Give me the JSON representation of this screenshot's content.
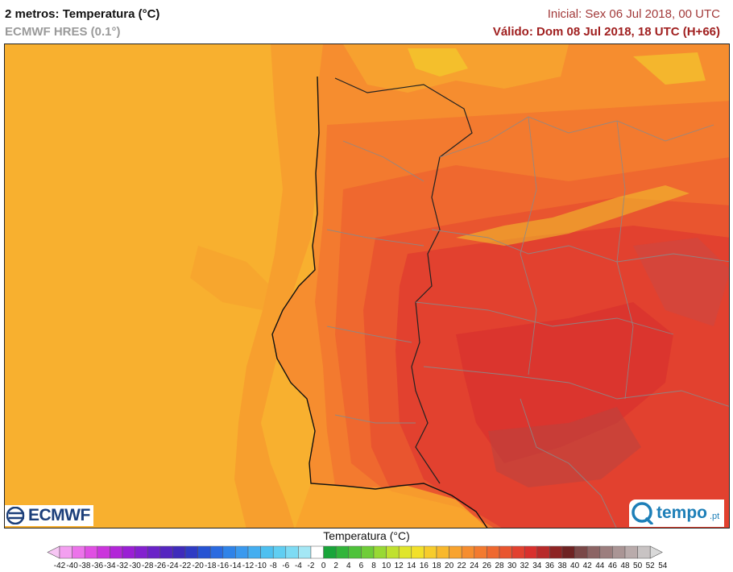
{
  "header": {
    "title": "2 metros: Temperatura (°C)",
    "model": "ECMWF HRES (0.1°)",
    "initial": "Inicial: Sex 06 Jul 2018, 00 UTC",
    "valid": "Válido: Dom 08 Jul 2018, 18 UTC (H+66)"
  },
  "logos": {
    "left": "ECMWF",
    "right_main": "tempo",
    "right_suffix": ".pt"
  },
  "colorbar": {
    "title": "Temperatura (°C)",
    "ticks": [
      "-42",
      "-40",
      "-38",
      "-36",
      "-34",
      "-32",
      "-30",
      "-28",
      "-26",
      "-24",
      "-22",
      "-20",
      "-18",
      "-16",
      "-14",
      "-12",
      "-10",
      "-8",
      "-6",
      "-4",
      "-2",
      "0",
      "2",
      "4",
      "6",
      "8",
      "10",
      "12",
      "14",
      "16",
      "18",
      "20",
      "22",
      "24",
      "26",
      "28",
      "30",
      "32",
      "34",
      "36",
      "38",
      "40",
      "42",
      "44",
      "46",
      "48",
      "50",
      "52",
      "54"
    ],
    "colors": [
      "#f7c6f4",
      "#f39ff0",
      "#ec73ea",
      "#e04fe3",
      "#cb35dc",
      "#b226d8",
      "#9a1fd4",
      "#8320cf",
      "#6a22c8",
      "#5526c0",
      "#3f2bbb",
      "#2f3bc4",
      "#2653d3",
      "#2a6ae0",
      "#2f83e8",
      "#3a99ee",
      "#44aef0",
      "#4ec0f0",
      "#60cef2",
      "#7ddbf4",
      "#a4e7f5",
      "#ffffff",
      "#19a53a",
      "#31b53a",
      "#4ec23a",
      "#6fcd38",
      "#98d934",
      "#c0e12f",
      "#e0e52b",
      "#f2e02a",
      "#f7cc2b",
      "#f8b82c",
      "#f8a32e",
      "#f68d2f",
      "#f37a2f",
      "#ef682f",
      "#e9552f",
      "#e2412f",
      "#d9302d",
      "#b82a2a",
      "#8e2424",
      "#6e2323",
      "#7a4848",
      "#8c6464",
      "#9c7e7e",
      "#aa9595",
      "#b9abab",
      "#c8c3c3",
      "#d9d9d9"
    ]
  },
  "map": {
    "ocean_color": "#f8b02f",
    "land_colors": [
      "#f68d2f",
      "#f37a2f",
      "#ef682f",
      "#e9552f",
      "#e2412f"
    ],
    "hot_zone_color": "#e2412f",
    "peak_zone_color": "#d9302d"
  }
}
